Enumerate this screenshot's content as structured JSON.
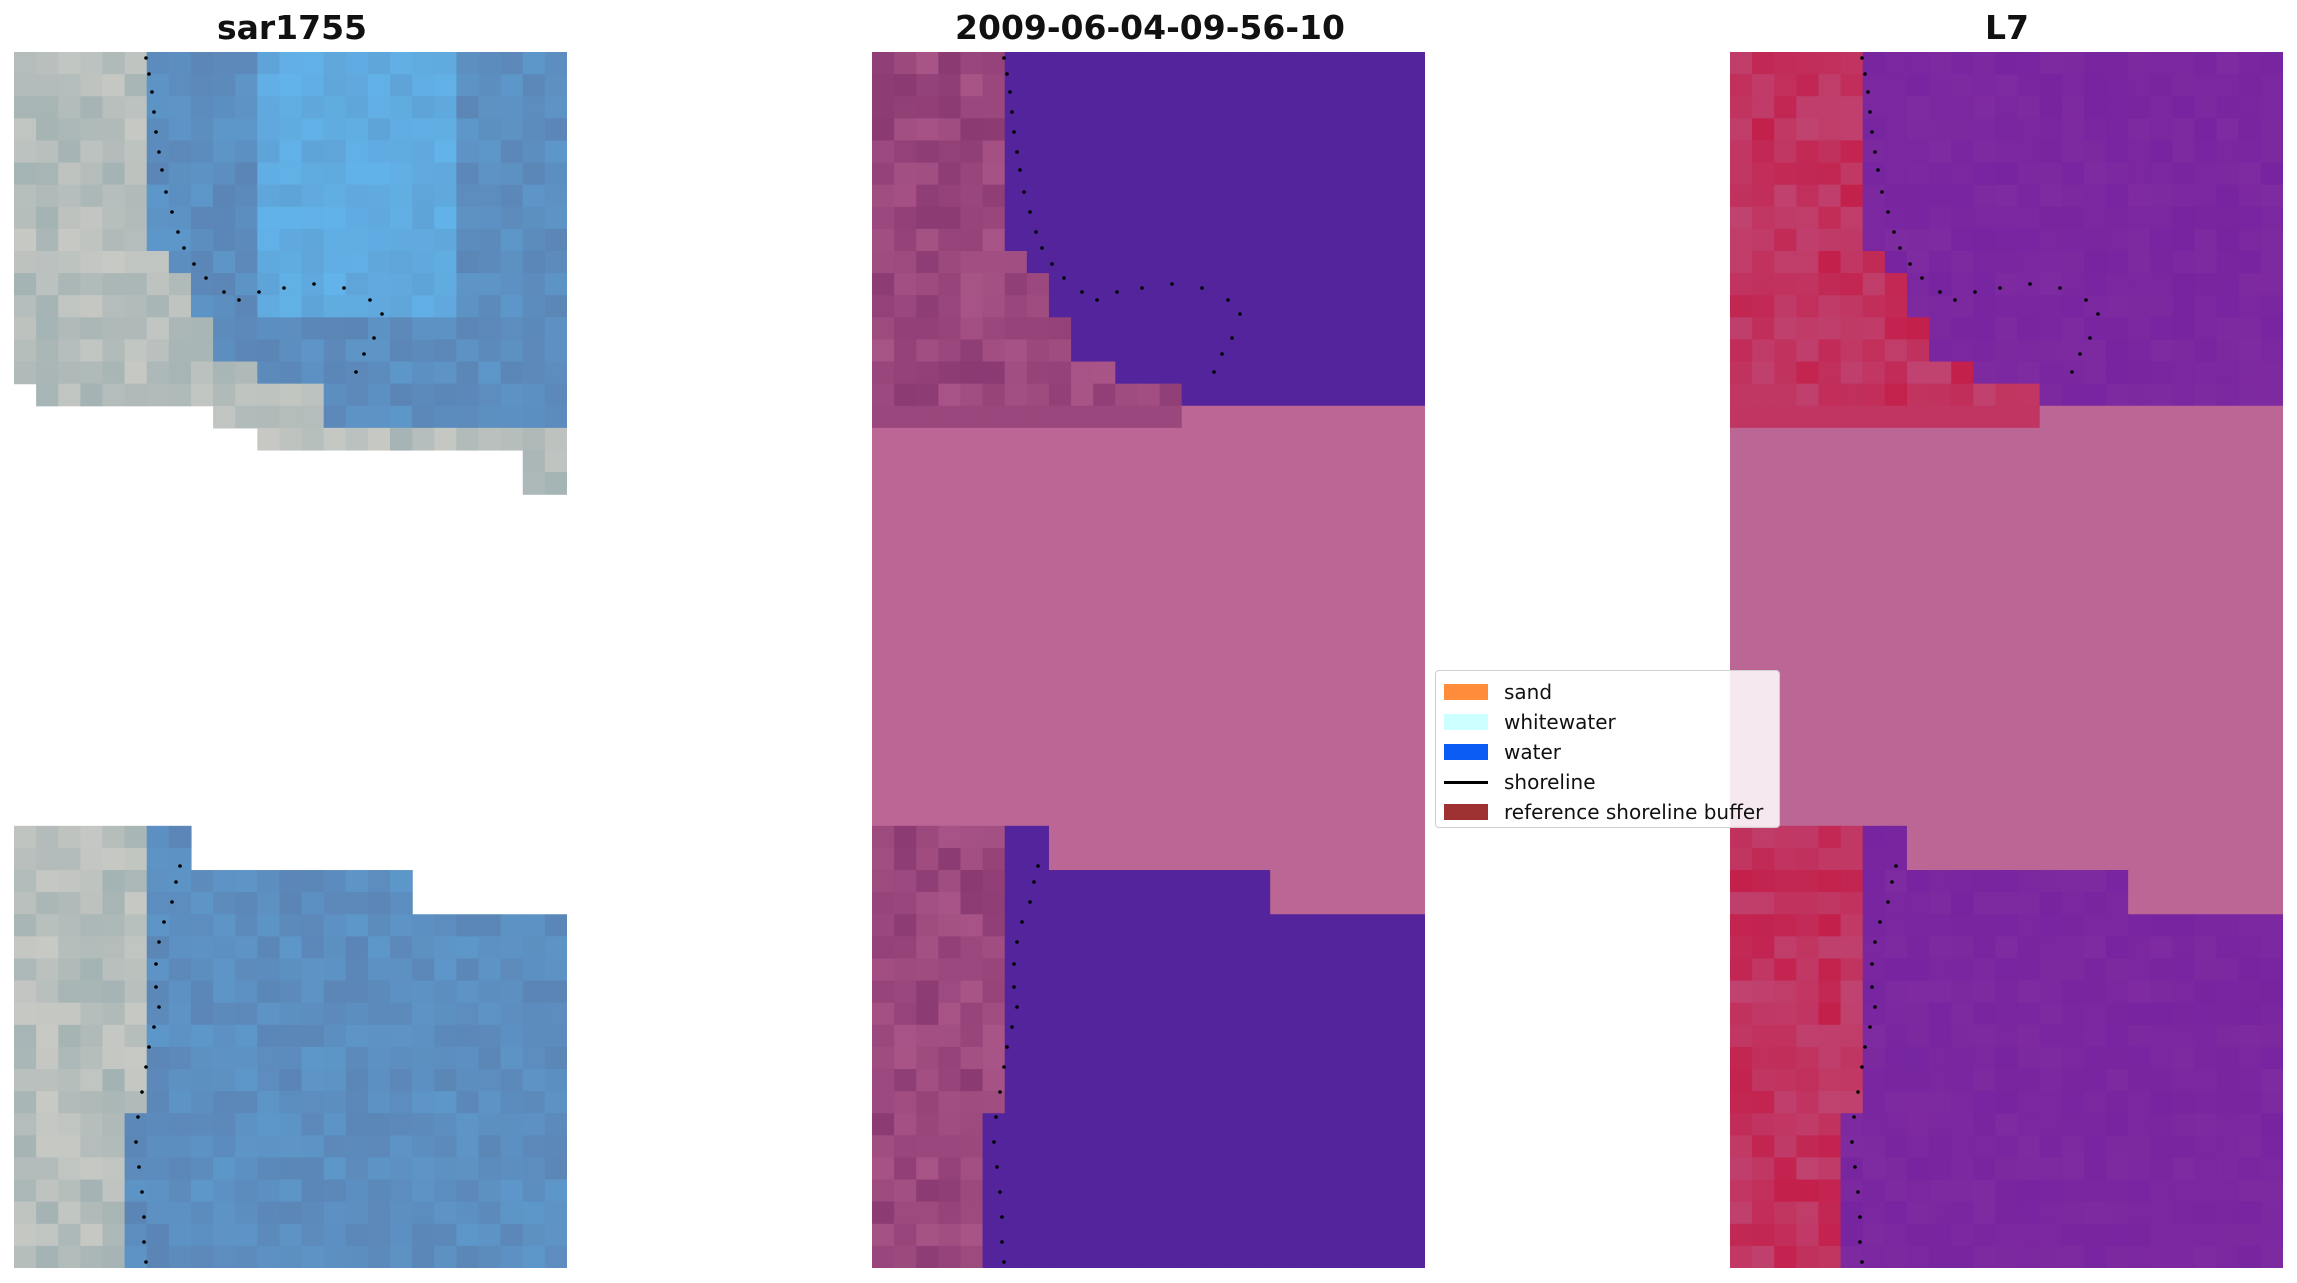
{
  "panels": [
    {
      "title": "sar1755"
    },
    {
      "title": "2009-06-04-09-56-10"
    },
    {
      "title": "L7"
    }
  ],
  "legend": {
    "items": [
      {
        "label": "sand",
        "color": "#ff8c3a",
        "kind": "patch"
      },
      {
        "label": "whitewater",
        "color": "#ccffff",
        "kind": "patch"
      },
      {
        "label": "water",
        "color": "#0a5cf5",
        "kind": "patch"
      },
      {
        "label": "shoreline",
        "color": "#000000",
        "kind": "line"
      },
      {
        "label": "reference shoreline buffer",
        "color": "#9e3233",
        "kind": "patch"
      }
    ]
  },
  "colors": {
    "rgb_water": "#5b85b5",
    "rgb_water_light": "#62b8ef",
    "rgb_land": "#a9b6b6",
    "class_water": "#53249b",
    "buffer": "#bc6696",
    "land_dark": "#8b3a72",
    "l7_land": "#c3204b",
    "l7_water": "#7e2aa0"
  }
}
